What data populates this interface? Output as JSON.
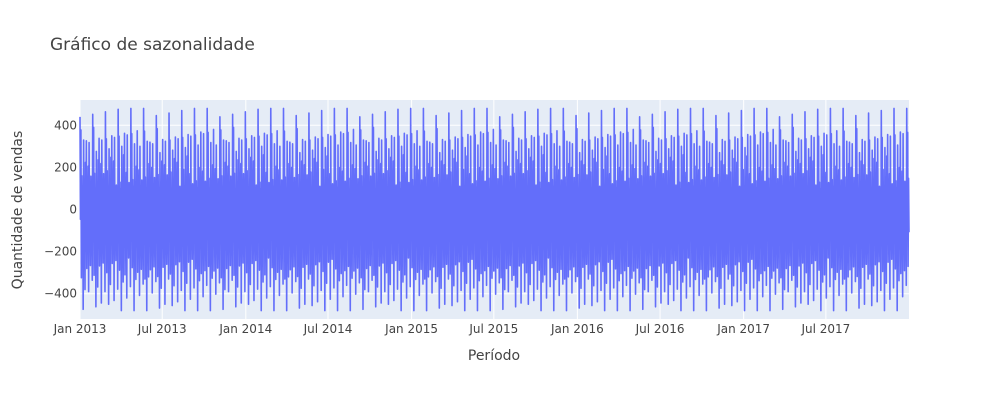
{
  "chart_data": {
    "type": "line",
    "title": "Gráfico de sazonalidade",
    "xlabel": "Período",
    "ylabel": "Quantidade de vendas",
    "x_range": [
      "2013-01-01",
      "2017-12-31"
    ],
    "ylim": [
      -520,
      520
    ],
    "x_ticks": [
      {
        "date": "2013-01-01",
        "label": "Jan 2013"
      },
      {
        "date": "2013-07-01",
        "label": "Jul 2013"
      },
      {
        "date": "2014-01-01",
        "label": "Jan 2014"
      },
      {
        "date": "2014-07-01",
        "label": "Jul 2014"
      },
      {
        "date": "2015-01-01",
        "label": "Jan 2015"
      },
      {
        "date": "2015-07-01",
        "label": "Jul 2015"
      },
      {
        "date": "2016-01-01",
        "label": "Jan 2016"
      },
      {
        "date": "2016-07-01",
        "label": "Jul 2016"
      },
      {
        "date": "2017-01-01",
        "label": "Jan 2017"
      },
      {
        "date": "2017-07-01",
        "label": "Jul 2017"
      }
    ],
    "y_ticks": [
      {
        "value": 400,
        "label": "400"
      },
      {
        "value": 200,
        "label": "200"
      },
      {
        "value": 0,
        "label": "0"
      },
      {
        "value": -200,
        "label": "−200"
      },
      {
        "value": -400,
        "label": "−400"
      }
    ],
    "grid": true,
    "series": [
      {
        "color": "#636efa",
        "period_days": 28,
        "cycle_values": [
          470,
          -40,
          360,
          -300,
          160,
          -120,
          80,
          -480,
          300,
          -200,
          40,
          -350,
          230,
          -60,
          350,
          -280,
          100,
          -20,
          200,
          -420,
          330,
          -150,
          60,
          -260,
          140,
          -90,
          20,
          -360
        ]
      }
    ]
  },
  "colors": {
    "plot_bg": "#e5ecf6",
    "grid": "#ffffff",
    "line": "#636efa",
    "text": "#444444"
  }
}
